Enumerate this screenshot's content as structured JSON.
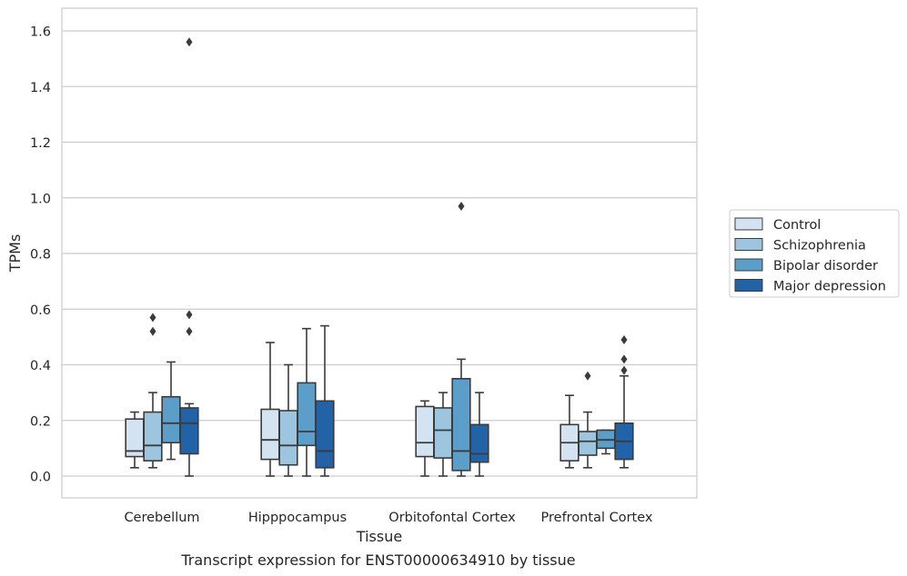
{
  "chart_data": {
    "type": "boxplot",
    "title": "",
    "caption": "Transcript expression for ENST00000634910 by tissue",
    "xlabel": "Tissue",
    "ylabel": "TPMs",
    "ylim": [
      -0.075,
      1.645
    ],
    "yticks": [
      "0.0",
      "0.2",
      "0.4",
      "0.6",
      "0.8",
      "1.0",
      "1.2",
      "1.4",
      "1.6"
    ],
    "ytick_values": [
      0,
      0.2,
      0.4,
      0.6,
      0.8,
      1.0,
      1.2,
      1.4,
      1.6
    ],
    "grid": true,
    "legend_position": "right",
    "categories": [
      "Cerebellum",
      "Hipppocampus",
      "Orbitofontal Cortex",
      "Prefrontal Cortex"
    ],
    "series": [
      {
        "name": "Control",
        "color": "#d3e3f2",
        "boxes": [
          {
            "whislo": 0.03,
            "q1": 0.07,
            "med": 0.09,
            "q3": 0.205,
            "whishi": 0.23,
            "fliers": []
          },
          {
            "whislo": 0.0,
            "q1": 0.06,
            "med": 0.13,
            "q3": 0.24,
            "whishi": 0.48,
            "fliers": []
          },
          {
            "whislo": 0.0,
            "q1": 0.07,
            "med": 0.12,
            "q3": 0.25,
            "whishi": 0.27,
            "fliers": []
          },
          {
            "whislo": 0.03,
            "q1": 0.055,
            "med": 0.12,
            "q3": 0.185,
            "whishi": 0.29,
            "fliers": []
          }
        ]
      },
      {
        "name": "Schizophrenia",
        "color": "#9dc5e0",
        "boxes": [
          {
            "whislo": 0.03,
            "q1": 0.055,
            "med": 0.11,
            "q3": 0.23,
            "whishi": 0.3,
            "fliers": [
              0.52,
              0.57
            ]
          },
          {
            "whislo": 0.0,
            "q1": 0.04,
            "med": 0.11,
            "q3": 0.235,
            "whishi": 0.4,
            "fliers": []
          },
          {
            "whislo": 0.0,
            "q1": 0.065,
            "med": 0.165,
            "q3": 0.245,
            "whishi": 0.3,
            "fliers": []
          },
          {
            "whislo": 0.03,
            "q1": 0.075,
            "med": 0.125,
            "q3": 0.16,
            "whishi": 0.23,
            "fliers": [
              0.36
            ]
          }
        ]
      },
      {
        "name": "Bipolar disorder",
        "color": "#5a9ec9",
        "boxes": [
          {
            "whislo": 0.06,
            "q1": 0.12,
            "med": 0.19,
            "q3": 0.285,
            "whishi": 0.41,
            "fliers": []
          },
          {
            "whislo": 0.0,
            "q1": 0.11,
            "med": 0.16,
            "q3": 0.335,
            "whishi": 0.53,
            "fliers": []
          },
          {
            "whislo": 0.0,
            "q1": 0.02,
            "med": 0.09,
            "q3": 0.35,
            "whishi": 0.42,
            "fliers": [
              0.97
            ]
          },
          {
            "whislo": 0.08,
            "q1": 0.1,
            "med": 0.13,
            "q3": 0.165,
            "whishi": 0.165,
            "fliers": []
          }
        ]
      },
      {
        "name": "Major depression",
        "color": "#2262a6",
        "boxes": [
          {
            "whislo": 0.0,
            "q1": 0.08,
            "med": 0.19,
            "q3": 0.245,
            "whishi": 0.26,
            "fliers": [
              0.52,
              0.58,
              1.56
            ]
          },
          {
            "whislo": 0.0,
            "q1": 0.03,
            "med": 0.09,
            "q3": 0.27,
            "whishi": 0.54,
            "fliers": []
          },
          {
            "whislo": 0.0,
            "q1": 0.05,
            "med": 0.08,
            "q3": 0.185,
            "whishi": 0.3,
            "fliers": []
          },
          {
            "whislo": 0.03,
            "q1": 0.06,
            "med": 0.125,
            "q3": 0.19,
            "whishi": 0.36,
            "fliers": [
              0.38,
              0.42,
              0.49
            ]
          }
        ]
      }
    ]
  }
}
